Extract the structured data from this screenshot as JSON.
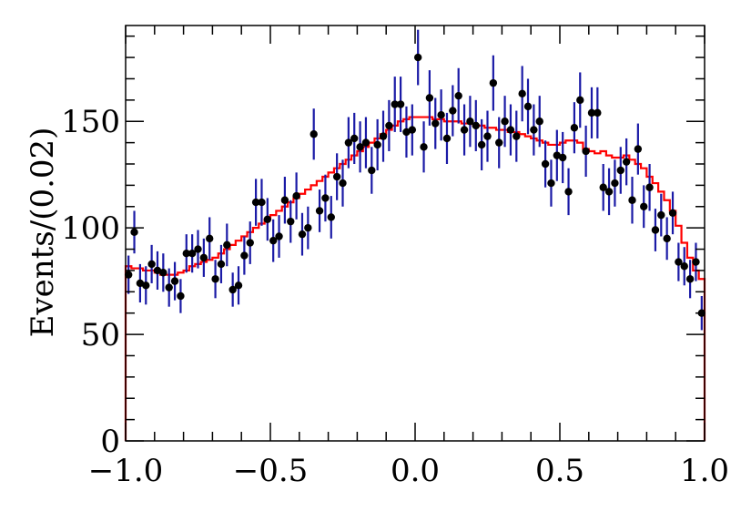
{
  "chart_data": {
    "type": "scatter",
    "title": "",
    "xlabel": "",
    "ylabel": "Events/(0.02)",
    "xlim": [
      -1.0,
      1.0
    ],
    "ylim": [
      0,
      195
    ],
    "x_ticks": [
      -1.0,
      -0.5,
      0.0,
      0.5,
      1.0
    ],
    "x_tick_labels": [
      "−1.0",
      "−0.5",
      "0.0",
      "0.5",
      "1.0"
    ],
    "y_ticks": [
      0,
      50,
      100,
      150
    ],
    "y_tick_labels": [
      "0",
      "50",
      "100",
      "150"
    ],
    "grid": false,
    "legend": "none",
    "series": [
      {
        "kind": "data-points-with-errors",
        "color": "#000000",
        "error_color": "#1a1aa6",
        "x": [
          -0.99,
          -0.97,
          -0.95,
          -0.93,
          -0.91,
          -0.89,
          -0.87,
          -0.85,
          -0.83,
          -0.81,
          -0.79,
          -0.77,
          -0.75,
          -0.73,
          -0.71,
          -0.69,
          -0.67,
          -0.65,
          -0.63,
          -0.61,
          -0.59,
          -0.57,
          -0.55,
          -0.53,
          -0.51,
          -0.49,
          -0.47,
          -0.45,
          -0.43,
          -0.41,
          -0.39,
          -0.37,
          -0.35,
          -0.33,
          -0.31,
          -0.29,
          -0.27,
          -0.25,
          -0.23,
          -0.21,
          -0.19,
          -0.17,
          -0.15,
          -0.13,
          -0.11,
          -0.09,
          -0.07,
          -0.05,
          -0.03,
          -0.01,
          0.01,
          0.03,
          0.05,
          0.07,
          0.09,
          0.11,
          0.13,
          0.15,
          0.17,
          0.19,
          0.21,
          0.23,
          0.25,
          0.27,
          0.29,
          0.31,
          0.33,
          0.35,
          0.37,
          0.39,
          0.41,
          0.43,
          0.45,
          0.47,
          0.49,
          0.51,
          0.53,
          0.55,
          0.57,
          0.59,
          0.61,
          0.63,
          0.65,
          0.67,
          0.69,
          0.71,
          0.73,
          0.75,
          0.77,
          0.79,
          0.81,
          0.83,
          0.85,
          0.87,
          0.89,
          0.91,
          0.93,
          0.95,
          0.97,
          0.99
        ],
        "y": [
          78,
          98,
          74,
          73,
          83,
          80,
          79,
          72,
          75,
          68,
          88,
          88,
          90,
          86,
          95,
          76,
          83,
          92,
          71,
          73,
          87,
          93,
          112,
          112,
          104,
          94,
          96,
          113,
          103,
          115,
          97,
          100,
          144,
          108,
          114,
          105,
          124,
          121,
          140,
          142,
          138,
          140,
          127,
          139,
          143,
          148,
          158,
          158,
          145,
          146,
          180,
          138,
          161,
          149,
          153,
          142,
          155,
          162,
          146,
          150,
          148,
          139,
          143,
          168,
          140,
          150,
          146,
          143,
          163,
          157,
          146,
          150,
          130,
          121,
          134,
          133,
          117,
          147,
          160,
          136,
          154,
          154,
          119,
          117,
          121,
          127,
          131,
          113,
          137,
          110,
          119,
          99,
          106,
          95,
          107,
          84,
          82,
          76,
          84,
          60
        ],
        "yerr": [
          9,
          10,
          9,
          9,
          9,
          9,
          9,
          9,
          9,
          8,
          9,
          9,
          9,
          9,
          10,
          9,
          9,
          10,
          8,
          9,
          9,
          10,
          11,
          11,
          10,
          10,
          10,
          11,
          10,
          11,
          10,
          10,
          12,
          10,
          11,
          10,
          11,
          11,
          12,
          12,
          12,
          12,
          11,
          12,
          12,
          12,
          13,
          13,
          12,
          12,
          13,
          12,
          13,
          12,
          12,
          12,
          12,
          13,
          12,
          12,
          12,
          12,
          12,
          13,
          12,
          12,
          12,
          12,
          13,
          13,
          12,
          12,
          11,
          11,
          12,
          12,
          11,
          12,
          13,
          12,
          12,
          12,
          11,
          11,
          11,
          11,
          11,
          11,
          12,
          10,
          11,
          10,
          10,
          10,
          10,
          9,
          9,
          9,
          9,
          8
        ]
      },
      {
        "kind": "fit-histogram",
        "color": "#ff0000",
        "bin_edges_start": -1.0,
        "bin_width": 0.02,
        "values": [
          82,
          81,
          81,
          80,
          80,
          79,
          78,
          78,
          78,
          79,
          80,
          82,
          83,
          84,
          85,
          86,
          88,
          90,
          92,
          94,
          96,
          98,
          100,
          102,
          104,
          106,
          108,
          110,
          112,
          114,
          116,
          118,
          120,
          122,
          124,
          126,
          128,
          130,
          132,
          134,
          136,
          138,
          140,
          142,
          144,
          146,
          148,
          150,
          151,
          152,
          152,
          152,
          152,
          151,
          151,
          150,
          150,
          150,
          149,
          149,
          148,
          148,
          147,
          147,
          146,
          146,
          145,
          145,
          144,
          143,
          142,
          141,
          140,
          139,
          139,
          140,
          141,
          141,
          140,
          137,
          136,
          135,
          136,
          134,
          133,
          133,
          134,
          132,
          130,
          128,
          124,
          121,
          117,
          113,
          108,
          101,
          93,
          86,
          80,
          76
        ]
      }
    ]
  }
}
